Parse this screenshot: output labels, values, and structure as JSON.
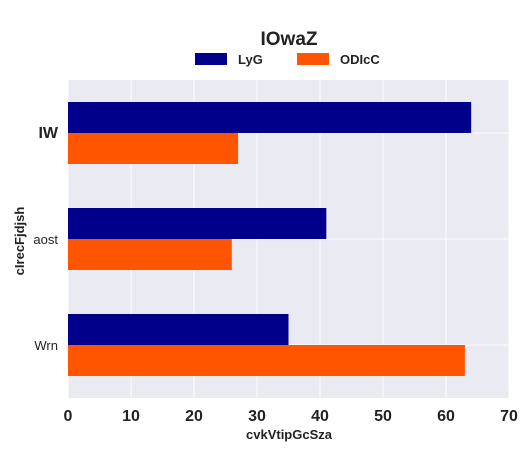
{
  "chart_data": {
    "type": "bar",
    "orientation": "horizontal",
    "title": "IOwaZ",
    "xlabel": "cvkVtipGcSza",
    "ylabel": "cIrecFjdjsh",
    "categories": [
      "IW",
      "aost",
      "Wrn"
    ],
    "series": [
      {
        "name": "LyG",
        "values": [
          64,
          41,
          35
        ],
        "color": "#00008b"
      },
      {
        "name": "ODIcC",
        "values": [
          27,
          26,
          63
        ],
        "color": "#ff5500"
      }
    ],
    "xlim": [
      0,
      70
    ],
    "xticks": [
      0,
      10,
      20,
      30,
      40,
      50,
      60,
      70
    ],
    "grid": true,
    "legend_position": "top-center",
    "background_color": "#eaeaf2"
  }
}
